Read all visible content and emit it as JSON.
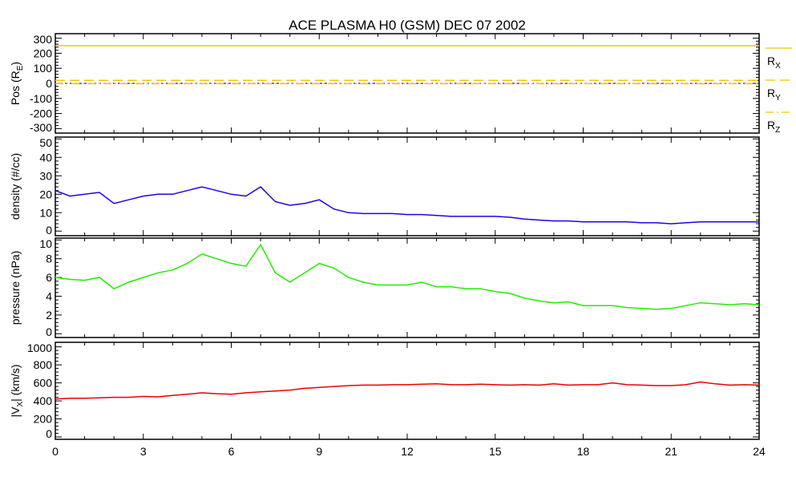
{
  "chart_data": [
    {
      "type": "line",
      "title": "ACE PLASMA H0 (GSM)   DEC 07 2002",
      "ylabel": {
        "main": "Pos (R",
        "sub": "E",
        "suffix": ")"
      },
      "ylim": [
        -330,
        330
      ],
      "yticks": [
        300,
        200,
        100,
        0,
        -100,
        -200,
        -300
      ],
      "ytick_labels": [
        "300",
        "200",
        "100",
        "0",
        "-100",
        "-200",
        "-300"
      ],
      "x": [
        0,
        24
      ],
      "series": [
        {
          "name": "RX",
          "label_main": "R",
          "label_sub": "X",
          "style": "solid",
          "color": "#f5c400",
          "values": [
            250,
            250
          ]
        },
        {
          "name": "RY",
          "label_main": "R",
          "label_sub": "Y",
          "style": "dashed",
          "color": "#f5c400",
          "values": [
            20,
            20
          ]
        },
        {
          "name": "RZ",
          "label_main": "R",
          "label_sub": "Z",
          "style": "dashdot",
          "color": "#f5c400",
          "values": [
            -2,
            -2
          ]
        }
      ],
      "reference_line": {
        "value": 0,
        "color": "#000000"
      },
      "legend": "right"
    },
    {
      "type": "line",
      "ylabel": {
        "main": "density (#/cc)",
        "sub": "",
        "suffix": ""
      },
      "ylim": [
        -2.5,
        51
      ],
      "yticks": [
        50,
        40,
        30,
        20,
        10,
        0
      ],
      "ytick_labels": [
        "50",
        "40",
        "30",
        "20",
        "10",
        "0"
      ],
      "x": [
        0,
        0.5,
        1,
        1.5,
        2,
        2.5,
        3,
        3.5,
        4,
        4.5,
        5,
        5.5,
        6,
        6.5,
        7,
        7.5,
        8,
        8.5,
        9,
        9.5,
        10,
        10.5,
        11,
        11.5,
        12,
        12.5,
        13,
        13.5,
        14,
        14.5,
        15,
        15.5,
        16,
        16.5,
        17,
        17.5,
        18,
        18.5,
        19,
        19.5,
        20,
        20.5,
        21,
        21.5,
        22,
        22.5,
        23,
        23.5,
        24
      ],
      "series": [
        {
          "name": "density",
          "color": "#2200ee",
          "values": [
            22,
            19,
            20,
            21,
            15,
            17,
            19,
            20,
            20,
            22,
            24,
            22,
            20,
            19,
            24,
            16,
            14,
            15,
            17,
            12,
            10,
            9.5,
            9.5,
            9.5,
            9,
            9,
            8.5,
            8,
            8,
            8,
            8,
            7.5,
            6.5,
            6,
            5.5,
            5.5,
            5,
            5,
            5,
            5,
            4.5,
            4.5,
            4,
            4.5,
            5,
            5,
            5,
            5,
            5
          ]
        }
      ]
    },
    {
      "type": "line",
      "ylabel": {
        "main": "pressure (nPa)",
        "sub": "",
        "suffix": ""
      },
      "ylim": [
        -0.4,
        10.2
      ],
      "yticks": [
        10,
        8,
        6,
        4,
        2,
        0
      ],
      "ytick_labels": [
        "10",
        "8",
        "6",
        "4",
        "2",
        "0"
      ],
      "x": [
        0,
        0.5,
        1,
        1.5,
        2,
        2.5,
        3,
        3.5,
        4,
        4.5,
        5,
        5.5,
        6,
        6.5,
        7,
        7.5,
        8,
        8.5,
        9,
        9.5,
        10,
        10.5,
        11,
        11.5,
        12,
        12.5,
        13,
        13.5,
        14,
        14.5,
        15,
        15.5,
        16,
        16.5,
        17,
        17.5,
        18,
        18.5,
        19,
        19.5,
        20,
        20.5,
        21,
        21.5,
        22,
        22.5,
        23,
        23.5,
        24
      ],
      "series": [
        {
          "name": "pressure",
          "color": "#22ee00",
          "values": [
            6,
            5.8,
            5.7,
            6,
            4.8,
            5.5,
            6,
            6.5,
            6.8,
            7.5,
            8.5,
            8,
            7.5,
            7.2,
            9.5,
            6.5,
            5.5,
            6.5,
            7.5,
            7,
            6,
            5.5,
            5.2,
            5.2,
            5.2,
            5.5,
            5,
            5,
            4.8,
            4.8,
            4.5,
            4.3,
            3.8,
            3.5,
            3.3,
            3.4,
            3,
            3,
            3,
            2.8,
            2.7,
            2.6,
            2.7,
            3,
            3.3,
            3.2,
            3.1,
            3.2,
            3.1
          ]
        }
      ]
    },
    {
      "type": "line",
      "ylabel": {
        "main": "|V",
        "sub": "X",
        "suffix": "| (km/s)"
      },
      "ylim": [
        -26,
        1050
      ],
      "yticks": [
        1000,
        800,
        600,
        400,
        200,
        0
      ],
      "ytick_labels": [
        "1000",
        "800",
        "600",
        "400",
        "200",
        "0"
      ],
      "x": [
        0,
        0.5,
        1,
        1.5,
        2,
        2.5,
        3,
        3.5,
        4,
        4.5,
        5,
        5.5,
        6,
        6.5,
        7,
        7.5,
        8,
        8.5,
        9,
        9.5,
        10,
        10.5,
        11,
        11.5,
        12,
        12.5,
        13,
        13.5,
        14,
        14.5,
        15,
        15.5,
        16,
        16.5,
        17,
        17.5,
        18,
        18.5,
        19,
        19.5,
        20,
        20.5,
        21,
        21.5,
        22,
        22.5,
        23,
        23.5,
        24
      ],
      "series": [
        {
          "name": "|VX|",
          "color": "#ee0000",
          "values": [
            420,
            430,
            430,
            435,
            440,
            440,
            450,
            445,
            460,
            475,
            490,
            480,
            475,
            490,
            500,
            510,
            520,
            540,
            550,
            560,
            570,
            575,
            575,
            580,
            580,
            585,
            590,
            580,
            580,
            585,
            580,
            575,
            580,
            575,
            590,
            575,
            580,
            580,
            600,
            580,
            575,
            570,
            570,
            580,
            610,
            590,
            575,
            580,
            575
          ]
        }
      ],
      "xlabel": "",
      "xlim": [
        0,
        24
      ],
      "xticks": [
        0,
        3,
        6,
        9,
        12,
        15,
        18,
        21,
        24
      ],
      "xtick_labels": [
        "0",
        "3",
        "6",
        "9",
        "12",
        "15",
        "18",
        "21",
        "24"
      ]
    }
  ]
}
